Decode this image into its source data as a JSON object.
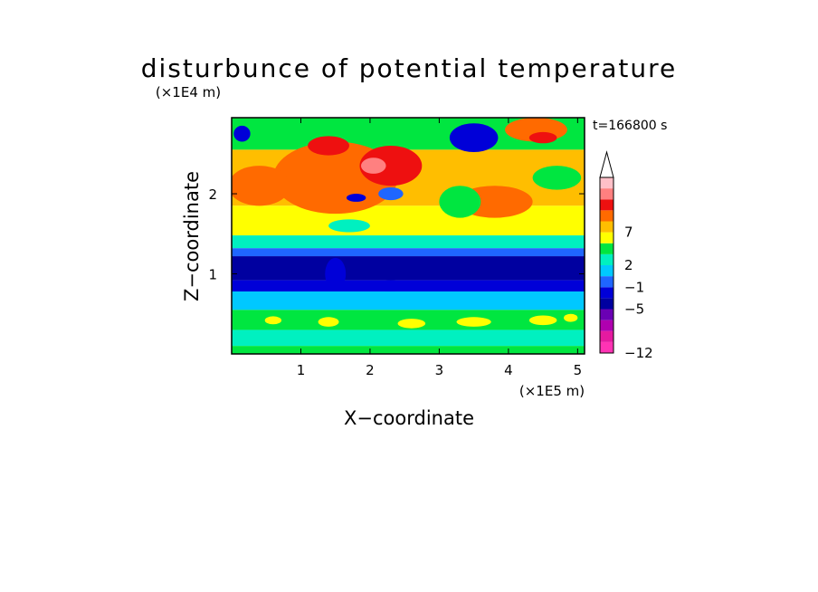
{
  "chart_data": {
    "type": "heatmap",
    "title": "disturbunce of potential temperature",
    "xlabel": "X−coordinate",
    "ylabel": "Z−coordinate",
    "x_unit": "(×1E5 m)",
    "y_unit": "(×1E4 m)",
    "time_label": "t=166800 s",
    "xlim": [
      0.0,
      5.1
    ],
    "ylim": [
      0.0,
      2.95
    ],
    "x_ticks": [
      1,
      2,
      3,
      4,
      5
    ],
    "y_ticks": [
      1,
      2
    ],
    "grid": false,
    "legend": "colorbar-right",
    "colorbar": {
      "tick_labels": [
        "−12",
        "−5",
        "−1",
        "2",
        "7"
      ],
      "tick_levels": [
        0,
        4,
        6,
        8,
        11
      ],
      "extend": "max",
      "colors": [
        "#ff33b4",
        "#e51aa0",
        "#b000b0",
        "#6a00b4",
        "#0000a0",
        "#0000d8",
        "#1f66ff",
        "#00c8ff",
        "#00f0c0",
        "#00e640",
        "#ffff00",
        "#ffbe00",
        "#ff6a00",
        "#ee1010",
        "#ff8080",
        "#ffc0c8"
      ]
    },
    "bands": [
      {
        "z": [
          2.55,
          2.95
        ],
        "level": 9
      },
      {
        "z": [
          1.85,
          2.55
        ],
        "level": 11
      },
      {
        "z": [
          1.48,
          1.85
        ],
        "level": 10
      },
      {
        "z": [
          1.32,
          1.48
        ],
        "level": 8
      },
      {
        "z": [
          1.22,
          1.32
        ],
        "level": 6
      },
      {
        "z": [
          0.92,
          1.22
        ],
        "level": 4
      },
      {
        "z": [
          0.78,
          0.92
        ],
        "level": 5
      },
      {
        "z": [
          0.55,
          0.78
        ],
        "level": 7
      },
      {
        "z": [
          0.3,
          0.55
        ],
        "level": 9
      },
      {
        "z": [
          0.1,
          0.3
        ],
        "level": 8
      },
      {
        "z": [
          0.0,
          0.1
        ],
        "level": 9
      }
    ],
    "features": [
      {
        "x": 1.5,
        "z": 2.2,
        "rx": 0.9,
        "rz": 0.45,
        "level": 12
      },
      {
        "x": 2.3,
        "z": 2.35,
        "rx": 0.45,
        "rz": 0.25,
        "level": 13
      },
      {
        "x": 2.05,
        "z": 2.35,
        "rx": 0.18,
        "rz": 0.1,
        "level": 14
      },
      {
        "x": 1.4,
        "z": 2.6,
        "rx": 0.3,
        "rz": 0.12,
        "level": 13
      },
      {
        "x": 0.4,
        "z": 2.1,
        "rx": 0.45,
        "rz": 0.25,
        "level": 12
      },
      {
        "x": 4.4,
        "z": 2.8,
        "rx": 0.45,
        "rz": 0.15,
        "level": 12
      },
      {
        "x": 4.5,
        "z": 2.7,
        "rx": 0.2,
        "rz": 0.07,
        "level": 13
      },
      {
        "x": 3.8,
        "z": 1.9,
        "rx": 0.55,
        "rz": 0.2,
        "level": 12
      },
      {
        "x": 0.15,
        "z": 2.75,
        "rx": 0.12,
        "rz": 0.1,
        "level": 5
      },
      {
        "x": 3.5,
        "z": 2.7,
        "rx": 0.35,
        "rz": 0.18,
        "level": 5
      },
      {
        "x": 1.8,
        "z": 1.95,
        "rx": 0.14,
        "rz": 0.05,
        "level": 5
      },
      {
        "x": 2.3,
        "z": 2.0,
        "rx": 0.18,
        "rz": 0.08,
        "level": 6
      },
      {
        "x": 1.7,
        "z": 1.6,
        "rx": 0.3,
        "rz": 0.08,
        "level": 8
      },
      {
        "x": 3.3,
        "z": 1.9,
        "rx": 0.3,
        "rz": 0.2,
        "level": 9
      },
      {
        "x": 4.7,
        "z": 2.2,
        "rx": 0.35,
        "rz": 0.15,
        "level": 9
      },
      {
        "x": 0.6,
        "z": 0.42,
        "rx": 0.12,
        "rz": 0.05,
        "level": 10
      },
      {
        "x": 1.4,
        "z": 0.4,
        "rx": 0.15,
        "rz": 0.06,
        "level": 10
      },
      {
        "x": 2.6,
        "z": 0.38,
        "rx": 0.2,
        "rz": 0.06,
        "level": 10
      },
      {
        "x": 3.5,
        "z": 0.4,
        "rx": 0.25,
        "rz": 0.06,
        "level": 10
      },
      {
        "x": 4.5,
        "z": 0.42,
        "rx": 0.2,
        "rz": 0.06,
        "level": 10
      },
      {
        "x": 4.9,
        "z": 0.45,
        "rx": 0.1,
        "rz": 0.05,
        "level": 10
      },
      {
        "x": 1.5,
        "z": 1.0,
        "rx": 0.15,
        "rz": 0.2,
        "level": 5
      },
      {
        "x": 2.3,
        "z": 0.85,
        "rx": 0.25,
        "rz": 0.07,
        "level": 5
      }
    ]
  }
}
